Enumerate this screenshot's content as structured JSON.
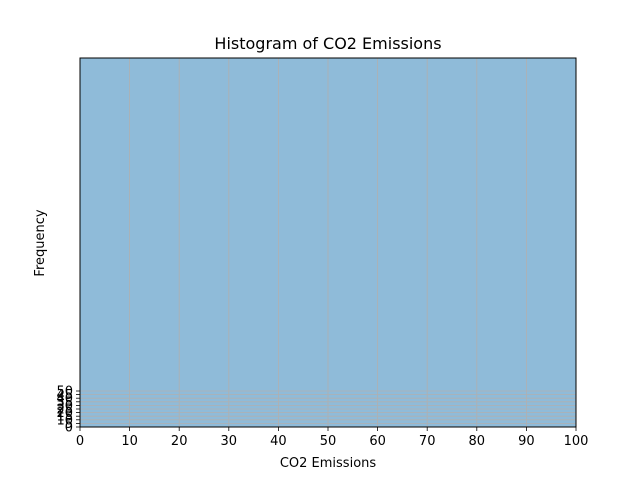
{
  "chart_data": {
    "type": "bar",
    "title": "Histogram of CO2 Emissions",
    "xlabel": "CO2 Emissions",
    "ylabel": "Frequency",
    "xlim": [
      0,
      100
    ],
    "x_ticks": [
      0,
      10,
      20,
      30,
      40,
      50,
      60,
      70,
      80,
      90,
      100
    ],
    "y_ticks": [
      0,
      5,
      10,
      15,
      20,
      25,
      30,
      35,
      40,
      45,
      50
    ],
    "ylim_visible": [
      0,
      50
    ],
    "bar_color": "#8fbbd9",
    "bins": [
      {
        "from": 0,
        "to": 10
      },
      {
        "from": 10,
        "to": 20
      },
      {
        "from": 20,
        "to": 30
      },
      {
        "from": 30,
        "to": 40
      },
      {
        "from": 40,
        "to": 50
      },
      {
        "from": 50,
        "to": 60
      },
      {
        "from": 60,
        "to": 70
      },
      {
        "from": 70,
        "to": 80
      },
      {
        "from": 80,
        "to": 90
      },
      {
        "from": 90,
        "to": 100
      }
    ],
    "grid": true,
    "legend": "none"
  }
}
